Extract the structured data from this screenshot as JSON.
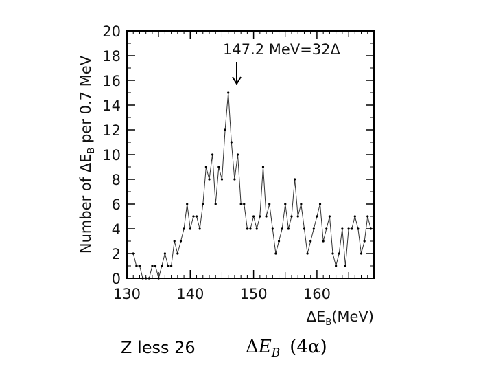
{
  "chart_data": {
    "type": "line",
    "xlabel": "ΔE",
    "xlabel_sub": "B",
    "xlabel_unit": "(MeV)",
    "ylabel_parts": [
      "Number of ΔE",
      "B",
      " per 0.7 MeV"
    ],
    "xlim": [
      130,
      169
    ],
    "ylim": [
      0,
      20
    ],
    "xticks": [
      "130",
      "140",
      "150",
      "160"
    ],
    "xtick_values": [
      130,
      140,
      150,
      160
    ],
    "yticks": [
      "0",
      "2",
      "4",
      "6",
      "8",
      "10",
      "12",
      "14",
      "16",
      "18",
      "20"
    ],
    "ytick_values": [
      0,
      2,
      4,
      6,
      8,
      10,
      12,
      14,
      16,
      18,
      20
    ],
    "annotation": {
      "text": "147.2 MeV=32Δ",
      "x": 147.2,
      "y": 15
    },
    "series": [
      {
        "x": [
          131.0,
          131.5,
          132.0,
          132.5,
          133.0,
          133.5,
          134.0,
          134.5,
          135.0,
          135.5,
          136.0,
          136.5,
          137.0,
          137.5,
          138.0,
          138.5,
          139.0,
          139.5,
          140.0,
          140.5,
          141.0,
          141.5,
          142.0,
          142.5,
          143.0,
          143.5,
          144.0,
          144.5,
          145.0,
          145.5,
          146.0,
          146.5,
          147.0,
          147.5,
          148.0,
          148.5,
          149.0,
          149.5,
          150.0,
          150.5,
          151.0,
          151.5,
          152.0,
          152.5,
          153.0,
          153.5,
          154.0,
          154.5,
          155.0,
          155.5,
          156.0,
          156.5,
          157.0,
          157.5,
          158.0,
          158.5,
          159.0,
          159.5,
          160.0,
          160.5,
          161.0,
          161.5,
          162.0,
          162.5,
          163.0,
          163.5,
          164.0,
          164.5,
          165.0,
          165.5,
          166.0,
          166.5,
          167.0,
          167.5,
          168.0,
          168.5
        ],
        "y": [
          2,
          1,
          1,
          0,
          0,
          0,
          1,
          1,
          0,
          1,
          2,
          1,
          1,
          3,
          2,
          3,
          4,
          6,
          4,
          5,
          5,
          4,
          6,
          9,
          8,
          10,
          6,
          9,
          8,
          12,
          15,
          11,
          8,
          10,
          6,
          6,
          4,
          4,
          5,
          4,
          5,
          9,
          5,
          6,
          4,
          2,
          3,
          4,
          6,
          4,
          5,
          8,
          5,
          6,
          4,
          2,
          3,
          4,
          5,
          6,
          3,
          4,
          5,
          2,
          1,
          2,
          4,
          1,
          4,
          4,
          5,
          4,
          2,
          3,
          5,
          4
        ]
      }
    ]
  },
  "caption": {
    "left": "Z less 26",
    "delta": "Δ",
    "var": "E",
    "sub": "B",
    "paren": "(4α)"
  }
}
